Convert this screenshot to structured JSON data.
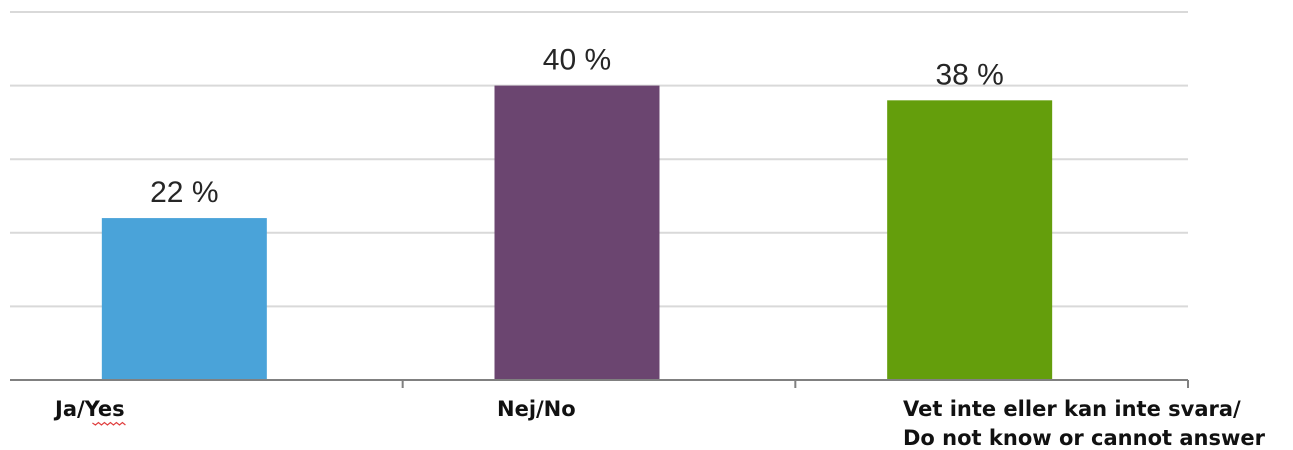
{
  "chart_data": {
    "type": "bar",
    "categories": [
      "Ja/Yes",
      "Nej/No",
      "Vet inte eller kan inte svara/ Do not know or cannot answer"
    ],
    "category_lines": [
      [
        "Ja/Yes"
      ],
      [
        "Nej/No"
      ],
      [
        "Vet inte eller kan inte svara/",
        "Do not know or cannot answer"
      ]
    ],
    "values": [
      22,
      40,
      38
    ],
    "data_labels": [
      "22 %",
      "40 %",
      "38 %"
    ],
    "colors": [
      "#4aa3d9",
      "#6b4570",
      "#649e0c"
    ],
    "ylim": [
      0,
      50
    ],
    "grid": true,
    "legend": "none",
    "title": "",
    "xlabel": "",
    "ylabel": ""
  }
}
